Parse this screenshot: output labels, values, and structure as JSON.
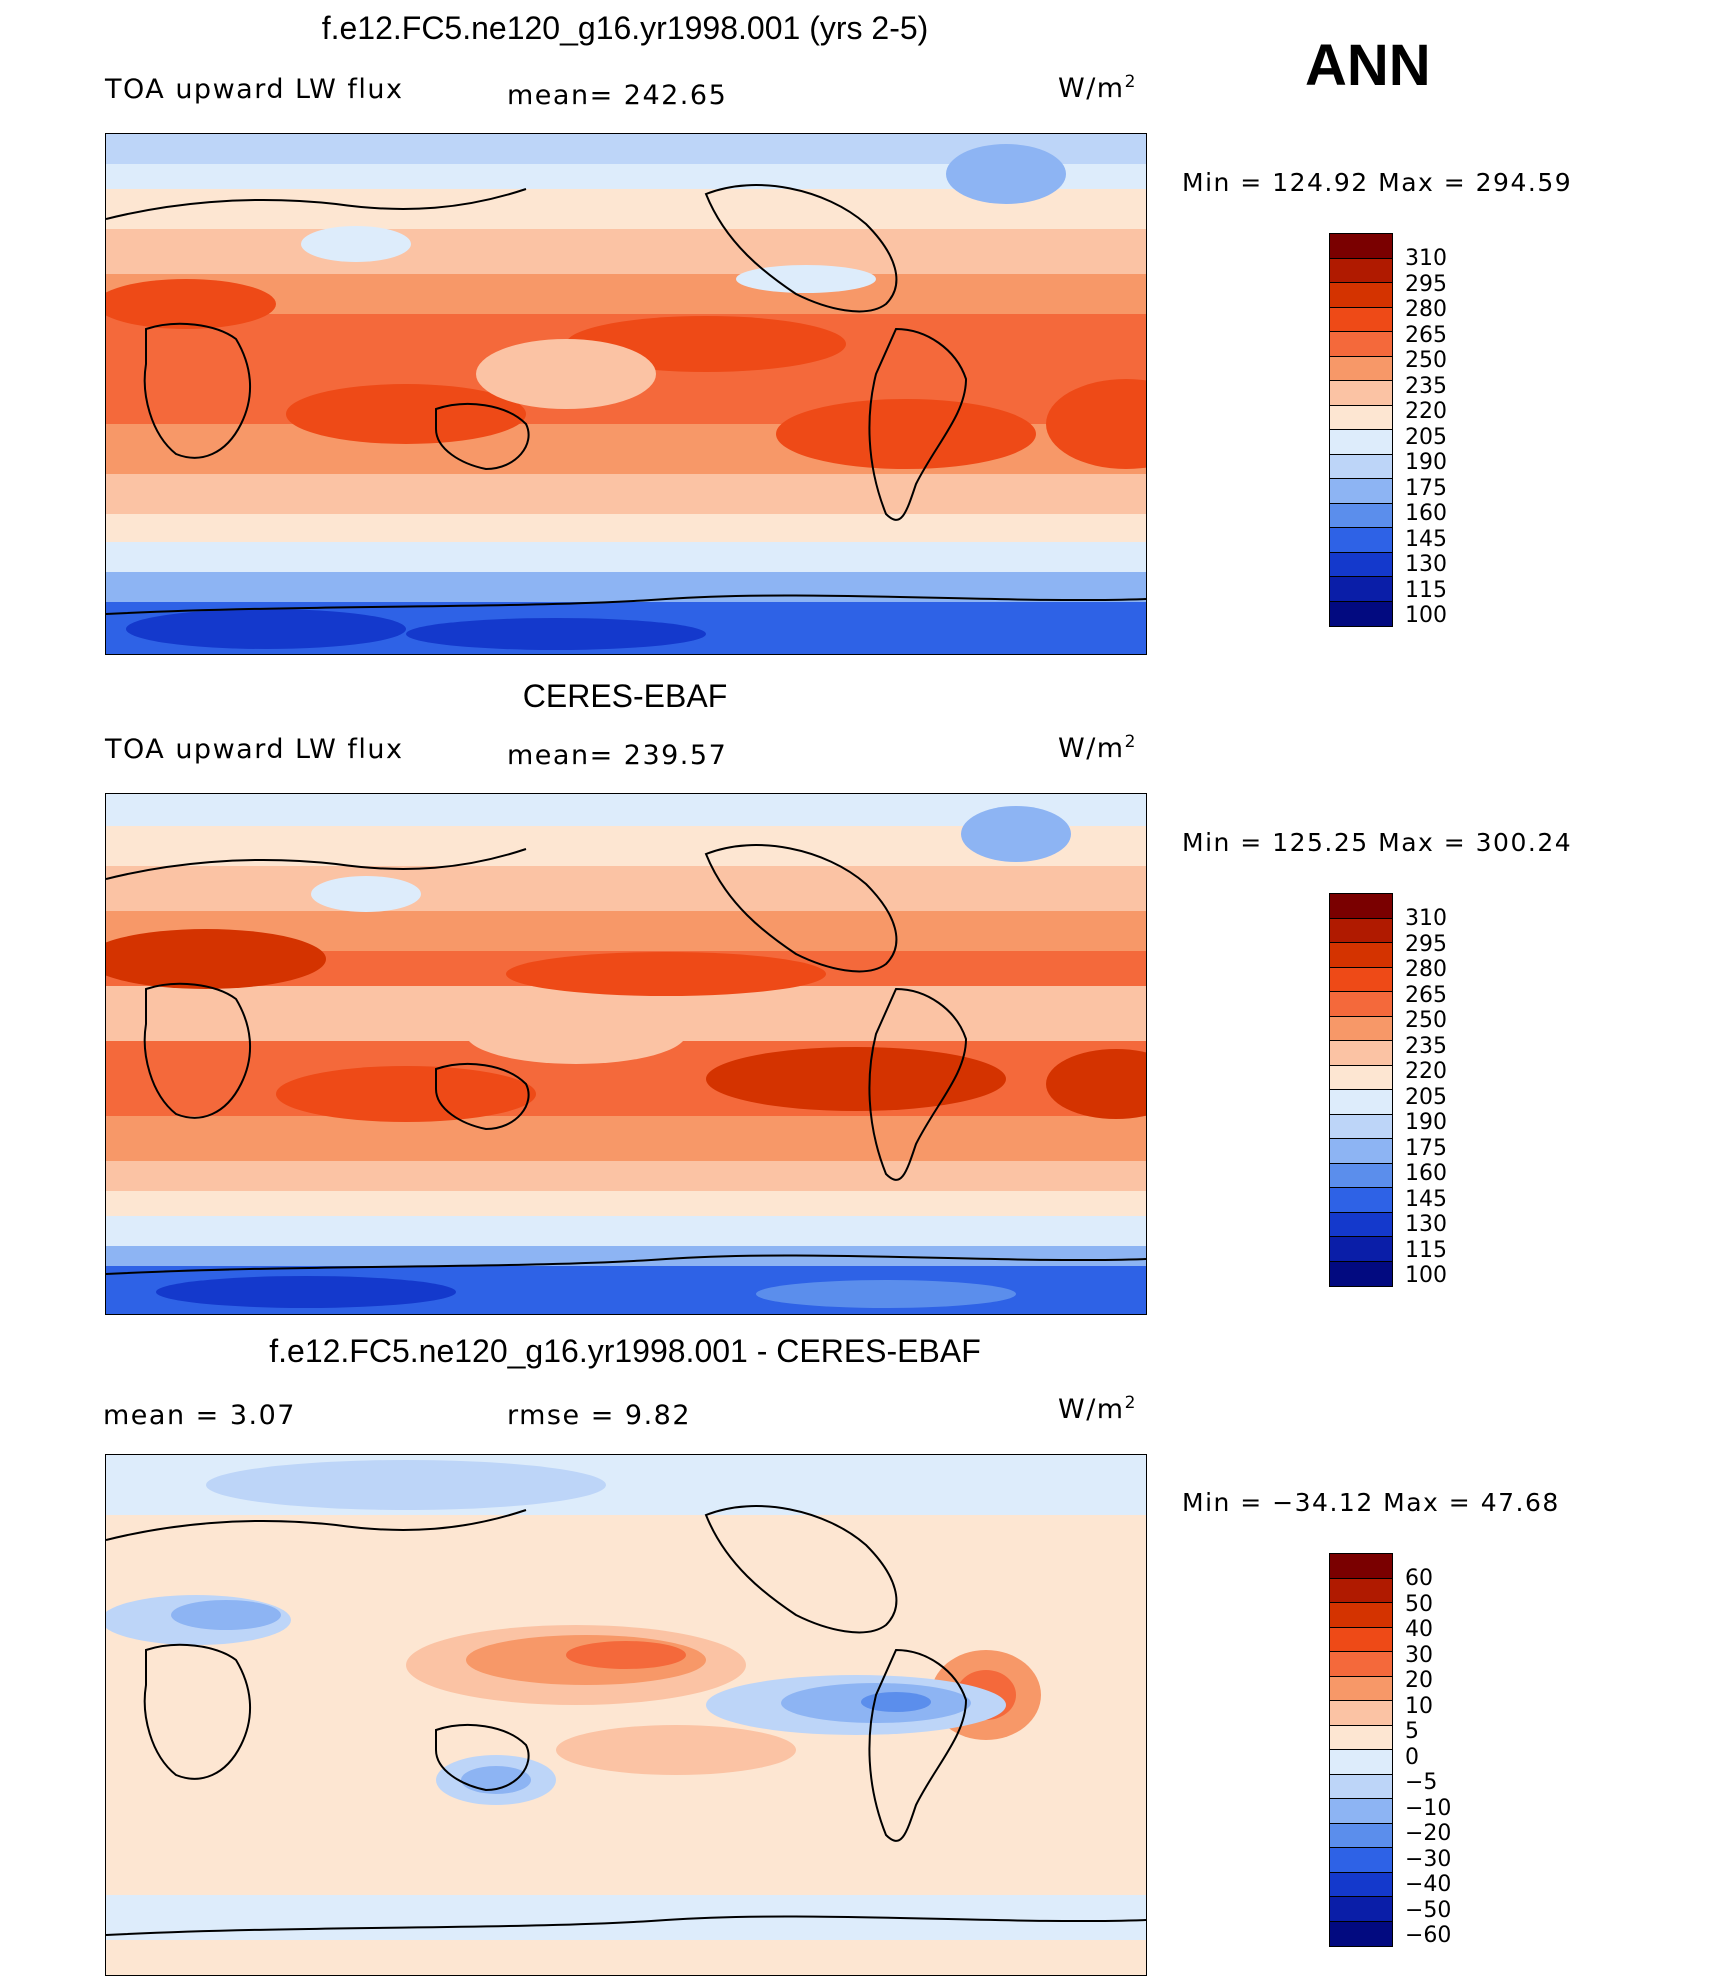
{
  "header": {
    "season": "ANN"
  },
  "panels": [
    {
      "title": "f.e12.FC5.ne120_g16.yr1998.001 (yrs 2-5)",
      "left_label": "TOA upward LW flux",
      "center_label": "mean=  242.65",
      "units_base": "W/m",
      "units_sup": "2",
      "minmax": "Min  =  124.92  Max  =  294.59",
      "colorbar_labels": [
        "310",
        "295",
        "280",
        "265",
        "250",
        "235",
        "220",
        "205",
        "190",
        "175",
        "160",
        "145",
        "130",
        "115",
        "100"
      ],
      "map_name": "model-map"
    },
    {
      "title": "CERES-EBAF",
      "left_label": "TOA upward LW flux",
      "center_label": "mean=  239.57",
      "units_base": "W/m",
      "units_sup": "2",
      "minmax": "Min  =  125.25  Max  =  300.24",
      "colorbar_labels": [
        "310",
        "295",
        "280",
        "265",
        "250",
        "235",
        "220",
        "205",
        "190",
        "175",
        "160",
        "145",
        "130",
        "115",
        "100"
      ],
      "map_name": "obs-map"
    },
    {
      "title": "f.e12.FC5.ne120_g16.yr1998.001 - CERES-EBAF",
      "left_label": "mean  =     3.07",
      "center_label": "rmse  =     9.82",
      "units_base": "W/m",
      "units_sup": "2",
      "minmax": "Min  =  −34.12  Max  =    47.68",
      "colorbar_labels": [
        "60",
        "50",
        "40",
        "30",
        "20",
        "10",
        "5",
        "0",
        "−5",
        "−10",
        "−20",
        "−30",
        "−40",
        "−50",
        "−60"
      ],
      "map_name": "diff-map"
    }
  ],
  "colors": {
    "scale": [
      "#7a0000",
      "#b01a00",
      "#d43300",
      "#ee4a17",
      "#f4693b",
      "#f79868",
      "#fbc3a4",
      "#fde6d2",
      "#ddecfb",
      "#bdd5f8",
      "#8db4f3",
      "#5b8eec",
      "#2e62e6",
      "#1439cc",
      "#0a1ea8",
      "#020a80"
    ]
  },
  "chart_data": [
    {
      "type": "heatmap",
      "title": "f.e12.FC5.ne120_g16.yr1998.001 (yrs 2-5)",
      "variable": "TOA upward LW flux",
      "units": "W/m2",
      "mean": 242.65,
      "min": 124.92,
      "max": 294.59,
      "contour_levels": [
        100,
        115,
        130,
        145,
        160,
        175,
        190,
        205,
        220,
        235,
        250,
        265,
        280,
        295,
        310
      ]
    },
    {
      "type": "heatmap",
      "title": "CERES-EBAF",
      "variable": "TOA upward LW flux",
      "units": "W/m2",
      "mean": 239.57,
      "min": 125.25,
      "max": 300.24,
      "contour_levels": [
        100,
        115,
        130,
        145,
        160,
        175,
        190,
        205,
        220,
        235,
        250,
        265,
        280,
        295,
        310
      ]
    },
    {
      "type": "heatmap",
      "title": "f.e12.FC5.ne120_g16.yr1998.001 - CERES-EBAF",
      "units": "W/m2",
      "mean": 3.07,
      "rmse": 9.82,
      "min": -34.12,
      "max": 47.68,
      "contour_levels": [
        -60,
        -50,
        -40,
        -30,
        -20,
        -10,
        -5,
        0,
        5,
        10,
        20,
        30,
        40,
        50,
        60
      ]
    }
  ]
}
